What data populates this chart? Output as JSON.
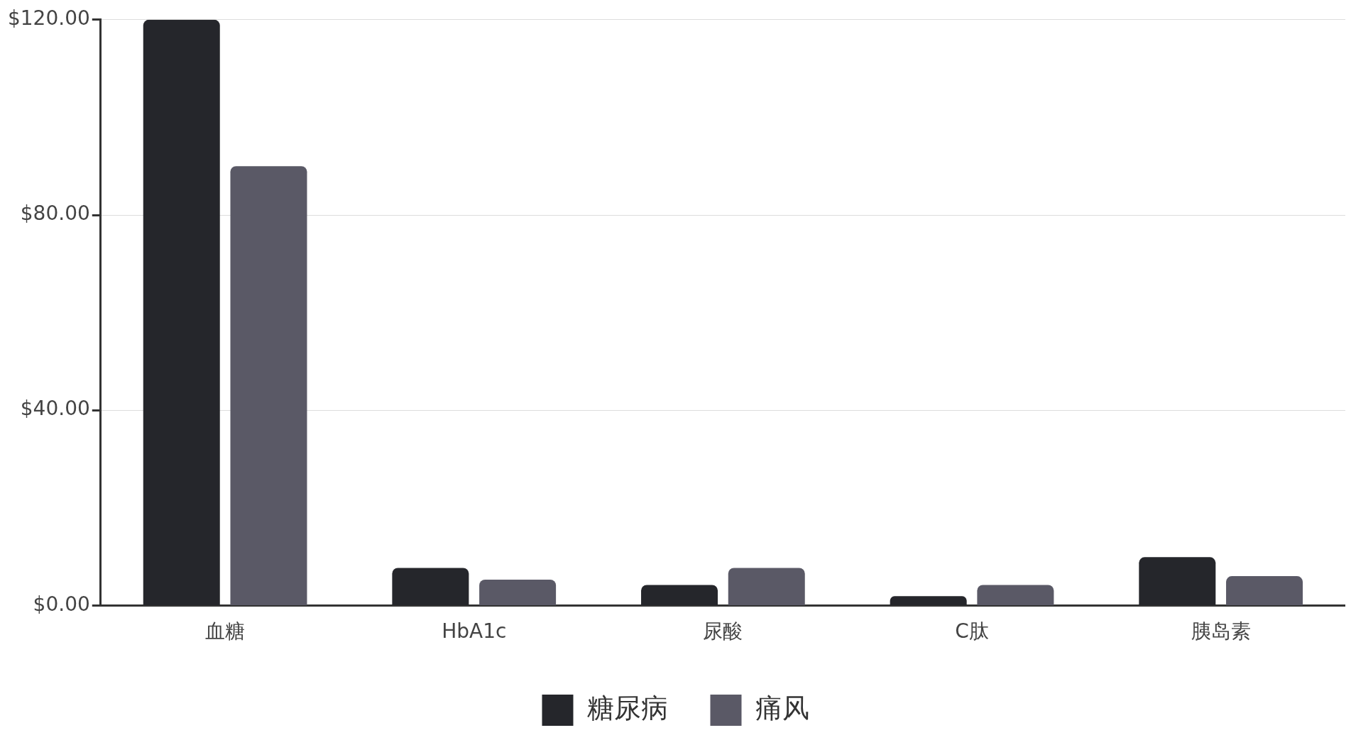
{
  "chart_data": {
    "type": "bar",
    "categories": [
      "血糖",
      "HbA1c",
      "尿酸",
      "C肽",
      "胰岛素"
    ],
    "series": [
      {
        "name": "糖尿病",
        "color": "#25262b",
        "values": [
          120,
          7.7,
          4.2,
          1.9,
          9.9
        ]
      },
      {
        "name": "痛风",
        "color": "#5a5966",
        "values": [
          90,
          5.3,
          7.7,
          4.2,
          6.0
        ]
      }
    ],
    "ylim": [
      0,
      120
    ],
    "yticks": [
      {
        "value": 0,
        "label": "$0.00"
      },
      {
        "value": 40,
        "label": "$40.00"
      },
      {
        "value": 80,
        "label": "$80.00"
      },
      {
        "value": 120,
        "label": "$120.00"
      }
    ],
    "grid": "y",
    "legend": "bottom"
  }
}
